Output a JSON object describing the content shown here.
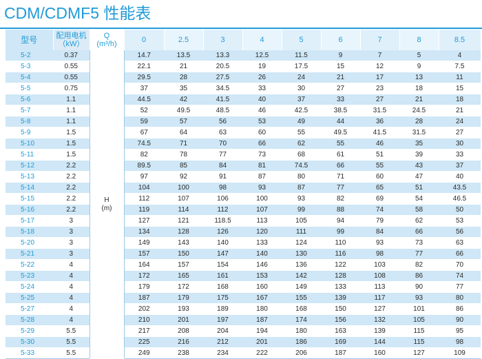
{
  "title": "CDM/CDMF5 性能表",
  "header": {
    "model": "型号",
    "power_line1": "配用电机",
    "power_line2": "（kW）",
    "q_line1": "Q",
    "q_line2": "(m³/h)",
    "flows": [
      "0",
      "2.5",
      "3",
      "4",
      "5",
      "6",
      "7",
      "8",
      "8.5"
    ]
  },
  "head_label_line1": "H",
  "head_label_line2": "(m)",
  "rows": [
    {
      "model": "5-2",
      "power": "0.37",
      "values": [
        "14.7",
        "13.5",
        "13.3",
        "12.5",
        "11.5",
        "9",
        "7",
        "5",
        "4"
      ]
    },
    {
      "model": "5-3",
      "power": "0.55",
      "values": [
        "22.1",
        "21",
        "20.5",
        "19",
        "17.5",
        "15",
        "12",
        "9",
        "7.5"
      ]
    },
    {
      "model": "5-4",
      "power": "0.55",
      "values": [
        "29.5",
        "28",
        "27.5",
        "26",
        "24",
        "21",
        "17",
        "13",
        "11"
      ]
    },
    {
      "model": "5-5",
      "power": "0.75",
      "values": [
        "37",
        "35",
        "34.5",
        "33",
        "30",
        "27",
        "23",
        "18",
        "15"
      ]
    },
    {
      "model": "5-6",
      "power": "1.1",
      "values": [
        "44.5",
        "42",
        "41.5",
        "40",
        "37",
        "33",
        "27",
        "21",
        "18"
      ]
    },
    {
      "model": "5-7",
      "power": "1.1",
      "values": [
        "52",
        "49.5",
        "48.5",
        "46",
        "42.5",
        "38.5",
        "31.5",
        "24.5",
        "21"
      ]
    },
    {
      "model": "5-8",
      "power": "1.1",
      "values": [
        "59",
        "57",
        "56",
        "53",
        "49",
        "44",
        "36",
        "28",
        "24"
      ]
    },
    {
      "model": "5-9",
      "power": "1.5",
      "values": [
        "67",
        "64",
        "63",
        "60",
        "55",
        "49.5",
        "41.5",
        "31.5",
        "27"
      ]
    },
    {
      "model": "5-10",
      "power": "1.5",
      "values": [
        "74.5",
        "71",
        "70",
        "66",
        "62",
        "55",
        "46",
        "35",
        "30"
      ]
    },
    {
      "model": "5-11",
      "power": "1.5",
      "values": [
        "82",
        "78",
        "77",
        "73",
        "68",
        "61",
        "51",
        "39",
        "33"
      ]
    },
    {
      "model": "5-12",
      "power": "2.2",
      "values": [
        "89.5",
        "85",
        "84",
        "81",
        "74.5",
        "66",
        "55",
        "43",
        "37"
      ]
    },
    {
      "model": "5-13",
      "power": "2.2",
      "values": [
        "97",
        "92",
        "91",
        "87",
        "80",
        "71",
        "60",
        "47",
        "40"
      ]
    },
    {
      "model": "5-14",
      "power": "2.2",
      "values": [
        "104",
        "100",
        "98",
        "93",
        "87",
        "77",
        "65",
        "51",
        "43.5"
      ]
    },
    {
      "model": "5-15",
      "power": "2.2",
      "values": [
        "112",
        "107",
        "106",
        "100",
        "93",
        "82",
        "69",
        "54",
        "46.5"
      ]
    },
    {
      "model": "5-16",
      "power": "2.2",
      "values": [
        "119",
        "114",
        "112",
        "107",
        "99",
        "88",
        "74",
        "58",
        "50"
      ]
    },
    {
      "model": "5-17",
      "power": "3",
      "values": [
        "127",
        "121",
        "118.5",
        "113",
        "105",
        "94",
        "79",
        "62",
        "53"
      ]
    },
    {
      "model": "5-18",
      "power": "3",
      "values": [
        "134",
        "128",
        "126",
        "120",
        "111",
        "99",
        "84",
        "66",
        "56"
      ]
    },
    {
      "model": "5-20",
      "power": "3",
      "values": [
        "149",
        "143",
        "140",
        "133",
        "124",
        "110",
        "93",
        "73",
        "63"
      ]
    },
    {
      "model": "5-21",
      "power": "3",
      "values": [
        "157",
        "150",
        "147",
        "140",
        "130",
        "116",
        "98",
        "77",
        "66"
      ]
    },
    {
      "model": "5-22",
      "power": "4",
      "values": [
        "164",
        "157",
        "154",
        "146",
        "136",
        "122",
        "103",
        "82",
        "70"
      ]
    },
    {
      "model": "5-23",
      "power": "4",
      "values": [
        "172",
        "165",
        "161",
        "153",
        "142",
        "128",
        "108",
        "86",
        "74"
      ]
    },
    {
      "model": "5-24",
      "power": "4",
      "values": [
        "179",
        "172",
        "168",
        "160",
        "149",
        "133",
        "113",
        "90",
        "77"
      ]
    },
    {
      "model": "5-25",
      "power": "4",
      "values": [
        "187",
        "179",
        "175",
        "167",
        "155",
        "139",
        "117",
        "93",
        "80"
      ]
    },
    {
      "model": "5-27",
      "power": "4",
      "values": [
        "202",
        "193",
        "189",
        "180",
        "168",
        "150",
        "127",
        "101",
        "86"
      ]
    },
    {
      "model": "5-28",
      "power": "4",
      "values": [
        "210",
        "201",
        "197",
        "187",
        "174",
        "156",
        "132",
        "105",
        "90"
      ]
    },
    {
      "model": "5-29",
      "power": "5.5",
      "values": [
        "217",
        "208",
        "204",
        "194",
        "180",
        "163",
        "139",
        "115",
        "95"
      ]
    },
    {
      "model": "5-30",
      "power": "5.5",
      "values": [
        "225",
        "216",
        "212",
        "201",
        "186",
        "169",
        "144",
        "115",
        "98"
      ]
    },
    {
      "model": "5-33",
      "power": "5.5",
      "values": [
        "249",
        "238",
        "234",
        "222",
        "206",
        "187",
        "160",
        "127",
        "109"
      ]
    }
  ]
}
